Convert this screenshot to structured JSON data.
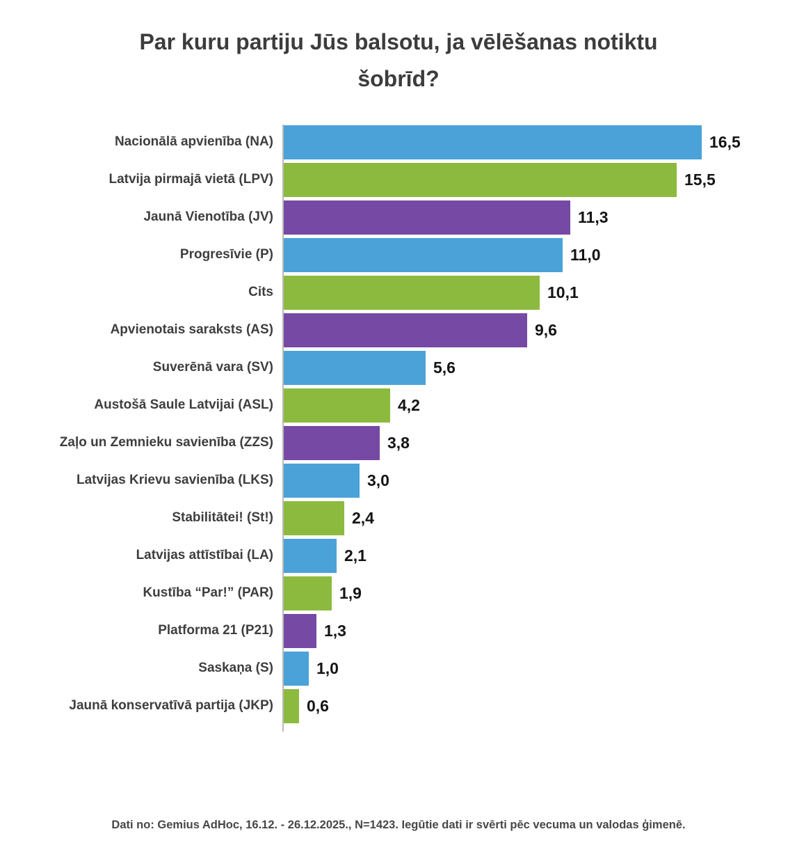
{
  "title": [
    "Par kuru partiju Jūs balsotu, ja vēlēšanas notiktu",
    "šobrīd?"
  ],
  "footer": "Dati no: Gemius AdHoc, 16.12. - 26.12.2025., N=1423. Iegūtie dati ir svērti pēc vecuma un valodas ģimenē.",
  "colors": {
    "blue": "#4AA2D9",
    "green": "#8CBA3E",
    "purple": "#7649A5",
    "title_text": "#3C3C3C",
    "label_text": "#3E3E3E",
    "value_text": "#141414",
    "axis_line": "#B9B9B9"
  },
  "chart_data": {
    "type": "bar",
    "orientation": "horizontal",
    "title": "Par kuru partiju Jūs balsotu, ja vēlēšanas notiktu šobrīd?",
    "xlabel": "",
    "ylabel": "",
    "xlim": [
      0,
      16.5
    ],
    "grid": false,
    "legend": false,
    "categories": [
      "Nacionālā apvienība (NA)",
      "Latvija pirmajā vietā (LPV)",
      "Jaunā Vienotība (JV)",
      "Progresīvie (P)",
      "Cits",
      "Apvienotais saraksts (AS)",
      "Suverēnā vara (SV)",
      "Austošā Saule Latvijai (ASL)",
      "Zaļo un Zemnieku savienība (ZZS)",
      "Latvijas Krievu savienība (LKS)",
      "Stabilitātei! (St!)",
      "Latvijas attīstībai (LA)",
      "Kustība “Par!” (PAR)",
      "Platforma 21 (P21)",
      "Saskaņa (S)",
      "Jaunā konservatīvā partija (JKP)"
    ],
    "values": [
      16.5,
      15.5,
      11.3,
      11.0,
      10.1,
      9.6,
      5.6,
      4.2,
      3.8,
      3.0,
      2.4,
      2.1,
      1.9,
      1.3,
      1.0,
      0.6
    ],
    "value_labels": [
      "16,5",
      "15,5",
      "11,3",
      "11,0",
      "10,1",
      "9,6",
      "5,6",
      "4,2",
      "3,8",
      "3,0",
      "2,4",
      "2,1",
      "1,9",
      "1,3",
      "1,0",
      "0,6"
    ],
    "bar_colors": [
      "blue",
      "green",
      "purple",
      "blue",
      "green",
      "purple",
      "blue",
      "green",
      "purple",
      "blue",
      "green",
      "blue",
      "green",
      "purple",
      "blue",
      "green"
    ]
  }
}
